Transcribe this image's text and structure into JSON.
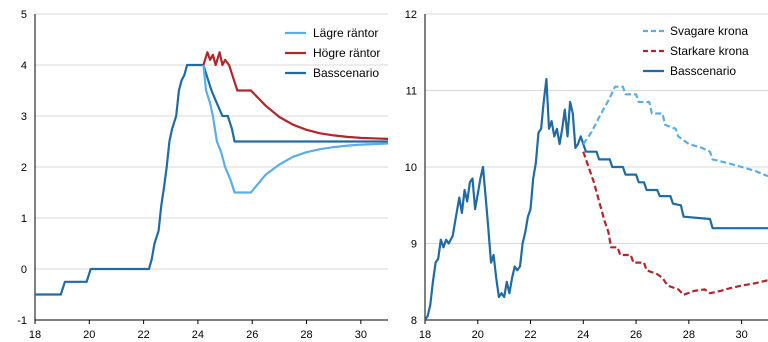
{
  "chart_data": [
    {
      "type": "line",
      "xlim": [
        18,
        31
      ],
      "ylim": [
        -1,
        5
      ],
      "x_ticks": [
        18,
        20,
        22,
        24,
        26,
        28,
        30
      ],
      "y_ticks": [
        -1,
        0,
        1,
        2,
        3,
        4,
        5
      ],
      "grid": "horizontal",
      "legend_position": "top-right",
      "series": [
        {
          "name": "Basscenario",
          "color": "#1f6ba5",
          "dash": "solid",
          "points": [
            [
              18,
              -0.5
            ],
            [
              18.95,
              -0.5
            ],
            [
              19.1,
              -0.25
            ],
            [
              19.9,
              -0.25
            ],
            [
              20.05,
              0
            ],
            [
              22.2,
              0
            ],
            [
              22.3,
              0.2
            ],
            [
              22.4,
              0.5
            ],
            [
              22.55,
              0.75
            ],
            [
              22.65,
              1.25
            ],
            [
              22.75,
              1.6
            ],
            [
              22.85,
              2
            ],
            [
              22.95,
              2.5
            ],
            [
              23.05,
              2.75
            ],
            [
              23.2,
              3
            ],
            [
              23.3,
              3.5
            ],
            [
              23.4,
              3.7
            ],
            [
              23.5,
              3.8
            ],
            [
              23.6,
              4
            ],
            [
              23.8,
              4
            ],
            [
              24,
              4
            ],
            [
              24.2,
              4
            ],
            [
              24.35,
              3.75
            ],
            [
              24.5,
              3.5
            ],
            [
              24.7,
              3.25
            ],
            [
              24.9,
              3
            ],
            [
              25.1,
              3
            ],
            [
              25.25,
              2.75
            ],
            [
              25.35,
              2.5
            ],
            [
              31,
              2.5
            ]
          ]
        },
        {
          "name": "Lägre räntor",
          "color": "#5aaee8",
          "dash": "solid",
          "points": [
            [
              24.2,
              4
            ],
            [
              24.3,
              3.5
            ],
            [
              24.45,
              3.25
            ],
            [
              24.55,
              3
            ],
            [
              24.7,
              2.5
            ],
            [
              24.85,
              2.3
            ],
            [
              25,
              2
            ],
            [
              25.2,
              1.75
            ],
            [
              25.35,
              1.5
            ],
            [
              25.95,
              1.5
            ],
            [
              26.5,
              1.85
            ],
            [
              27,
              2.05
            ],
            [
              27.5,
              2.2
            ],
            [
              28,
              2.29
            ],
            [
              28.5,
              2.35
            ],
            [
              29,
              2.39
            ],
            [
              29.5,
              2.42
            ],
            [
              30,
              2.44
            ],
            [
              31,
              2.46
            ]
          ]
        },
        {
          "name": "Högre räntor",
          "color": "#b3252a",
          "dash": "solid",
          "points": [
            [
              24.2,
              4
            ],
            [
              24.35,
              4.25
            ],
            [
              24.45,
              4.1
            ],
            [
              24.55,
              4.2
            ],
            [
              24.65,
              4
            ],
            [
              24.8,
              4.25
            ],
            [
              24.9,
              4
            ],
            [
              25,
              4.1
            ],
            [
              25.15,
              4
            ],
            [
              25.3,
              3.75
            ],
            [
              25.45,
              3.5
            ],
            [
              25.95,
              3.5
            ],
            [
              26.5,
              3.2
            ],
            [
              27,
              2.98
            ],
            [
              27.5,
              2.83
            ],
            [
              28,
              2.73
            ],
            [
              28.5,
              2.66
            ],
            [
              29,
              2.62
            ],
            [
              29.5,
              2.59
            ],
            [
              30,
              2.57
            ],
            [
              31,
              2.55
            ]
          ]
        }
      ]
    },
    {
      "type": "line",
      "xlim": [
        18,
        31
      ],
      "ylim": [
        8,
        12
      ],
      "x_ticks": [
        18,
        20,
        22,
        24,
        26,
        28,
        30
      ],
      "y_ticks": [
        8,
        9,
        10,
        11,
        12
      ],
      "grid": "horizontal",
      "legend_position": "top-right",
      "series": [
        {
          "name": "Basscenario",
          "color": "#1f6ba5",
          "dash": "solid",
          "points": [
            [
              18,
              8
            ],
            [
              18.1,
              8.05
            ],
            [
              18.2,
              8.2
            ],
            [
              18.3,
              8.5
            ],
            [
              18.4,
              8.75
            ],
            [
              18.5,
              8.8
            ],
            [
              18.6,
              9.05
            ],
            [
              18.7,
              8.95
            ],
            [
              18.8,
              9.05
            ],
            [
              18.9,
              9
            ],
            [
              19.05,
              9.1
            ],
            [
              19.15,
              9.3
            ],
            [
              19.3,
              9.6
            ],
            [
              19.4,
              9.4
            ],
            [
              19.5,
              9.7
            ],
            [
              19.6,
              9.55
            ],
            [
              19.7,
              9.8
            ],
            [
              19.8,
              9.85
            ],
            [
              19.9,
              9.45
            ],
            [
              20,
              9.65
            ],
            [
              20.1,
              9.85
            ],
            [
              20.2,
              10
            ],
            [
              20.3,
              9.6
            ],
            [
              20.4,
              9.2
            ],
            [
              20.5,
              8.75
            ],
            [
              20.6,
              8.85
            ],
            [
              20.7,
              8.55
            ],
            [
              20.8,
              8.3
            ],
            [
              20.9,
              8.35
            ],
            [
              21,
              8.3
            ],
            [
              21.1,
              8.5
            ],
            [
              21.2,
              8.35
            ],
            [
              21.3,
              8.55
            ],
            [
              21.4,
              8.7
            ],
            [
              21.5,
              8.65
            ],
            [
              21.6,
              8.7
            ],
            [
              21.7,
              9
            ],
            [
              21.8,
              9.15
            ],
            [
              21.9,
              9.35
            ],
            [
              22,
              9.45
            ],
            [
              22.1,
              9.85
            ],
            [
              22.2,
              10.05
            ],
            [
              22.3,
              10.45
            ],
            [
              22.4,
              10.5
            ],
            [
              22.5,
              10.85
            ],
            [
              22.6,
              11.15
            ],
            [
              22.7,
              10.5
            ],
            [
              22.8,
              10.6
            ],
            [
              22.9,
              10.4
            ],
            [
              23,
              10.5
            ],
            [
              23.1,
              10.3
            ],
            [
              23.2,
              10.5
            ],
            [
              23.3,
              10.75
            ],
            [
              23.4,
              10.4
            ],
            [
              23.5,
              10.85
            ],
            [
              23.6,
              10.7
            ],
            [
              23.7,
              10.25
            ],
            [
              23.8,
              10.3
            ],
            [
              23.9,
              10.4
            ],
            [
              24,
              10.3
            ],
            [
              24.1,
              10.2
            ],
            [
              24.5,
              10.2
            ],
            [
              24.6,
              10.1
            ],
            [
              25,
              10.1
            ],
            [
              25.1,
              10
            ],
            [
              25.5,
              10
            ],
            [
              25.6,
              9.9
            ],
            [
              26,
              9.9
            ],
            [
              26.1,
              9.8
            ],
            [
              26.3,
              9.8
            ],
            [
              26.4,
              9.7
            ],
            [
              26.8,
              9.7
            ],
            [
              26.9,
              9.62
            ],
            [
              27.3,
              9.62
            ],
            [
              27.4,
              9.52
            ],
            [
              27.7,
              9.5
            ],
            [
              27.8,
              9.35
            ],
            [
              28.8,
              9.32
            ],
            [
              28.9,
              9.2
            ],
            [
              31,
              9.2
            ]
          ]
        },
        {
          "name": "Svagare krona",
          "color": "#5aaee8",
          "dash": "dashed",
          "points": [
            [
              24,
              10.3
            ],
            [
              24.3,
              10.45
            ],
            [
              24.6,
              10.65
            ],
            [
              25,
              10.9
            ],
            [
              25.2,
              11.05
            ],
            [
              25.5,
              11.05
            ],
            [
              25.6,
              10.95
            ],
            [
              26,
              10.95
            ],
            [
              26.1,
              10.85
            ],
            [
              26.5,
              10.85
            ],
            [
              26.6,
              10.7
            ],
            [
              27,
              10.7
            ],
            [
              27.1,
              10.55
            ],
            [
              27.5,
              10.5
            ],
            [
              27.6,
              10.4
            ],
            [
              28,
              10.3
            ],
            [
              28.5,
              10.25
            ],
            [
              28.8,
              10.2
            ],
            [
              28.9,
              10.1
            ],
            [
              29.5,
              10.05
            ],
            [
              30,
              10
            ],
            [
              30.5,
              9.95
            ],
            [
              31,
              9.88
            ]
          ]
        },
        {
          "name": "Starkare krona",
          "color": "#b3252a",
          "dash": "dashed",
          "points": [
            [
              24,
              10.2
            ],
            [
              24.2,
              10
            ],
            [
              24.4,
              9.8
            ],
            [
              24.6,
              9.55
            ],
            [
              24.8,
              9.3
            ],
            [
              24.95,
              9.15
            ],
            [
              25.05,
              8.95
            ],
            [
              25.3,
              8.95
            ],
            [
              25.4,
              8.85
            ],
            [
              25.8,
              8.85
            ],
            [
              25.9,
              8.75
            ],
            [
              26.3,
              8.75
            ],
            [
              26.4,
              8.65
            ],
            [
              26.8,
              8.6
            ],
            [
              27,
              8.55
            ],
            [
              27.2,
              8.45
            ],
            [
              27.6,
              8.4
            ],
            [
              27.8,
              8.33
            ],
            [
              28.2,
              8.38
            ],
            [
              28.6,
              8.4
            ],
            [
              28.8,
              8.35
            ],
            [
              29.2,
              8.38
            ],
            [
              29.6,
              8.42
            ],
            [
              30,
              8.45
            ],
            [
              30.5,
              8.48
            ],
            [
              31,
              8.52
            ]
          ]
        }
      ]
    }
  ]
}
